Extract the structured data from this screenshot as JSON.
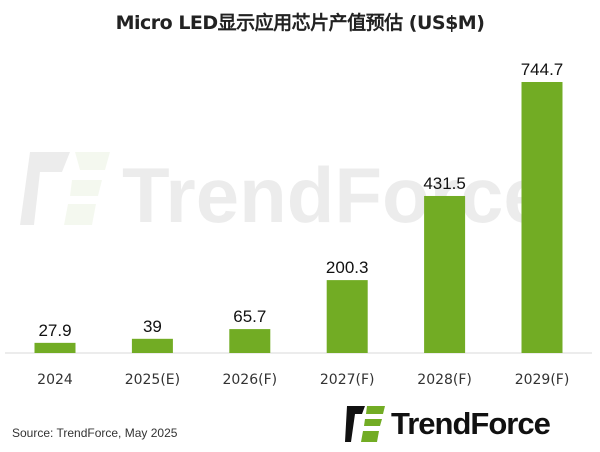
{
  "chart_data": {
    "type": "bar",
    "title": "Micro LED显示应用芯片产值预估 (US$M)",
    "categories": [
      "2024",
      "2025(E)",
      "2026(F)",
      "2027(F)",
      "2028(F)",
      "2029(F)"
    ],
    "values": [
      27.9,
      39,
      65.7,
      200.3,
      431.5,
      744.7
    ],
    "data_labels": [
      "27.9",
      "39",
      "65.7",
      "200.3",
      "431.5",
      "744.7"
    ],
    "xlabel": "",
    "ylabel": "",
    "ylim": [
      0,
      744.7
    ],
    "grid": false,
    "bar_color": "#72AC24"
  },
  "source": "Source: TrendForce, May 2025",
  "logo": {
    "text": "TrendForce",
    "watermark": "TrendForce"
  }
}
